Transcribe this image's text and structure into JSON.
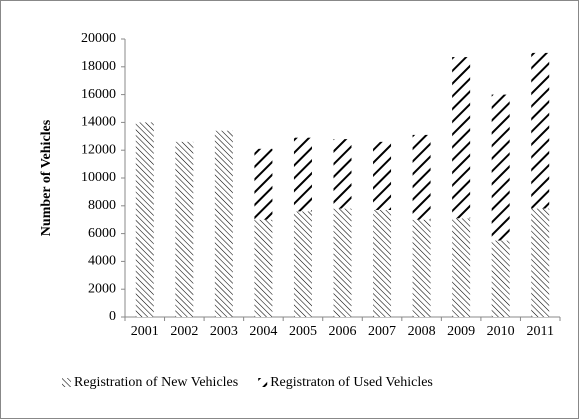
{
  "chart_data": {
    "type": "stacked-bar",
    "y_label": "Number of Vehicles",
    "categories": [
      "2001",
      "2002",
      "2003",
      "2004",
      "2005",
      "2006",
      "2007",
      "2008",
      "2009",
      "2010",
      "2011"
    ],
    "series": [
      {
        "name": "Registration of New Vehicles",
        "color": "#000000",
        "pattern": "dense-backslash",
        "values": [
          14000,
          12600,
          13400,
          7000,
          7600,
          7800,
          7700,
          7000,
          7100,
          5500,
          7800
        ]
      },
      {
        "name": "Registraton of Used Vehicles",
        "color": "#000000",
        "pattern": "wide-slash",
        "values": [
          0,
          0,
          0,
          5100,
          5300,
          5000,
          4900,
          6100,
          11600,
          10500,
          11200
        ]
      }
    ],
    "ylim": [
      0,
      20000
    ],
    "yticks": [
      0,
      2000,
      4000,
      6000,
      8000,
      10000,
      12000,
      14000,
      16000,
      18000,
      20000
    ],
    "grid": false,
    "legend": "bottom"
  }
}
